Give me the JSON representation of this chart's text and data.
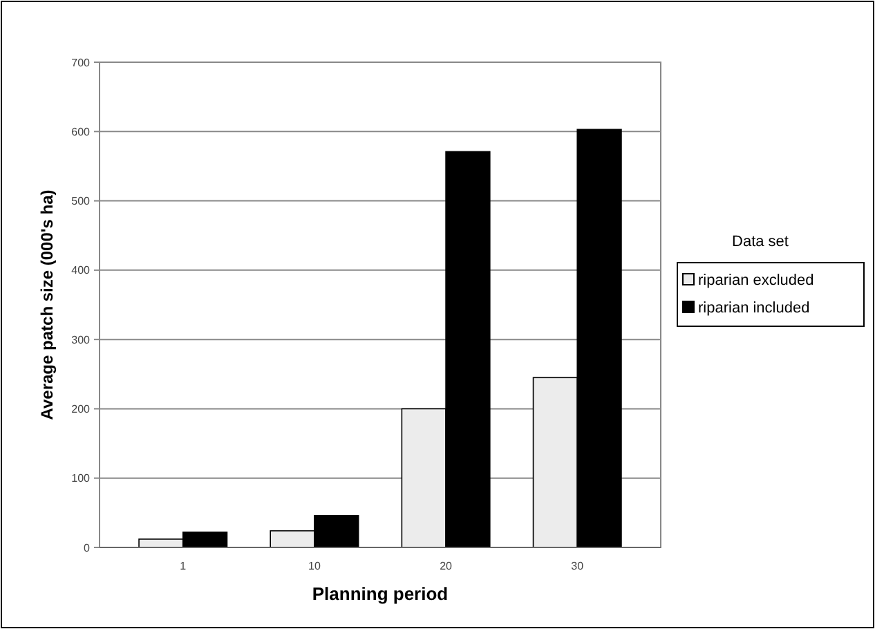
{
  "chart_data": {
    "type": "bar",
    "xlabel": "Planning period",
    "ylabel": "Average patch size (000's ha)",
    "legend_title": "Data set",
    "categories": [
      "1",
      "10",
      "20",
      "30"
    ],
    "series": [
      {
        "name": "riparian excluded",
        "color": "#ececec",
        "values": [
          12,
          24,
          200,
          245
        ]
      },
      {
        "name": "riparian included",
        "color": "#000000",
        "values": [
          22,
          46,
          571,
          603
        ]
      }
    ],
    "ylim": [
      0,
      700
    ],
    "yticks": [
      0,
      100,
      200,
      300,
      400,
      500,
      600,
      700
    ],
    "grid": "y",
    "legend": "right"
  }
}
